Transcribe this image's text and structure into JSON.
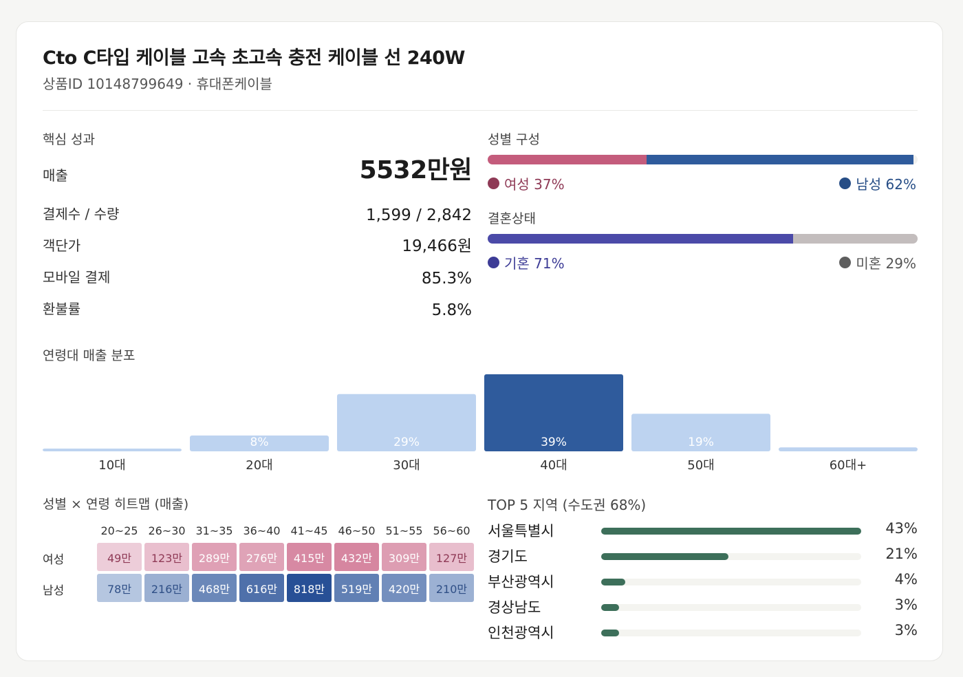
{
  "header": {
    "title": "Cto C타입 케이블 고속 초고속 충전 케이블 선 240W",
    "subtitle": "상품ID 10148799649 · 휴대폰케이블"
  },
  "kpi": {
    "section_label": "핵심 성과",
    "rows": [
      {
        "label": "매출",
        "value": "5532만원"
      },
      {
        "label": "결제수 / 수량",
        "value": "1,599 / 2,842"
      },
      {
        "label": "객단가",
        "value": "19,466원"
      },
      {
        "label": "모바일 결제",
        "value": "85.3%"
      },
      {
        "label": "환불률",
        "value": "5.8%"
      }
    ]
  },
  "gender": {
    "section_label": "성별 구성",
    "female_label": "여성 37%",
    "male_label": "남성 62%",
    "female_pct": 37,
    "male_pct": 62,
    "female_color": "#c45c7c",
    "male_color": "#2f5b9c"
  },
  "marital": {
    "section_label": "결혼상태",
    "married_label": "기혼 71%",
    "single_label": "미혼 29%",
    "married_pct": 71,
    "single_pct": 29,
    "married_color": "#4b4aa8",
    "single_color": "#c3bdbd"
  },
  "chart_data": [
    {
      "type": "bar",
      "title": "연령대 매출 분포",
      "categories": [
        "10대",
        "20대",
        "30대",
        "40대",
        "50대",
        "60대+"
      ],
      "values": [
        1,
        8,
        29,
        39,
        19,
        2
      ],
      "data_labels": [
        "",
        "8%",
        "29%",
        "39%",
        "19%",
        ""
      ],
      "ylim": [
        0,
        39
      ],
      "highlight_index": 3,
      "bar_color": "#bdd3f0",
      "highlight_color": "#2f5b9c"
    },
    {
      "type": "heatmap",
      "title": "성별 × 연령 히트맵 (매출)",
      "columns": [
        "20~25",
        "26~30",
        "31~35",
        "36~40",
        "41~45",
        "46~50",
        "51~55",
        "56~60"
      ],
      "rows": [
        {
          "name": "여성",
          "values": [
            49,
            123,
            289,
            276,
            415,
            432,
            309,
            127
          ],
          "labels": [
            "49만",
            "123만",
            "289만",
            "276만",
            "415만",
            "432만",
            "309만",
            "127만"
          ]
        },
        {
          "name": "남성",
          "values": [
            78,
            216,
            468,
            616,
            818,
            519,
            420,
            210
          ],
          "labels": [
            "78만",
            "216만",
            "468만",
            "616만",
            "818만",
            "519만",
            "420만",
            "210만"
          ]
        }
      ]
    },
    {
      "type": "bar",
      "title": "TOP 5 지역 (수도권 68%)",
      "orientation": "horizontal",
      "categories": [
        "서울특별시",
        "경기도",
        "부산광역시",
        "경상남도",
        "인천광역시"
      ],
      "values": [
        43,
        21,
        4,
        3,
        3
      ],
      "value_labels": [
        "43%",
        "21%",
        "4%",
        "3%",
        "3%"
      ],
      "xlim": [
        0,
        43
      ],
      "bar_color": "#3d6f5a"
    }
  ]
}
